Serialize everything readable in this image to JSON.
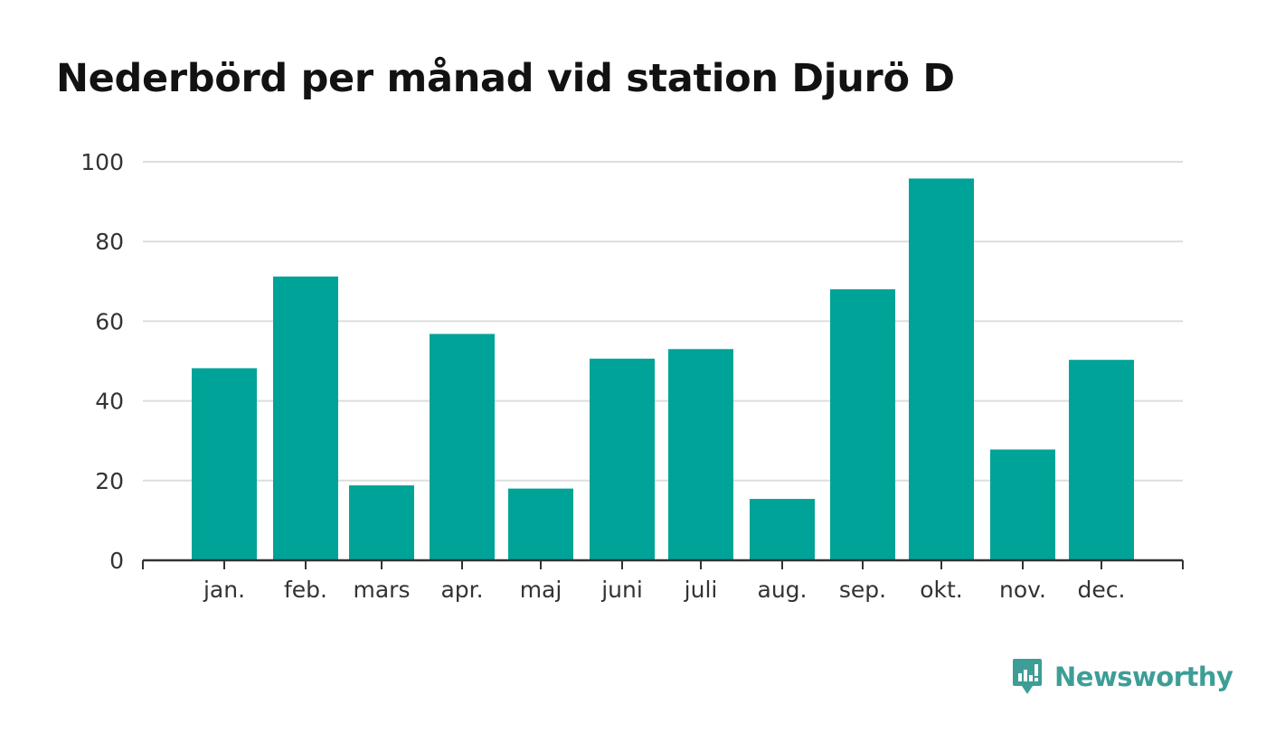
{
  "title": "Nederbörd per månad vid station Djurö D",
  "brand": {
    "name": "Newsworthy",
    "color": "#3d9e97"
  },
  "chart_data": {
    "type": "bar",
    "title": "Nederbörd per månad vid station Djurö D",
    "categories": [
      "jan.",
      "feb.",
      "mars",
      "apr.",
      "maj",
      "juni",
      "juli",
      "aug.",
      "sep.",
      "okt.",
      "nov.",
      "dec."
    ],
    "values": [
      48.2,
      71.2,
      18.8,
      56.8,
      18.0,
      50.6,
      53.0,
      15.4,
      68.0,
      95.8,
      27.8,
      50.3
    ],
    "ylim": [
      0,
      100
    ],
    "yticks": [
      0,
      20,
      40,
      60,
      80,
      100
    ],
    "xlabel": "",
    "ylabel": "",
    "grid": true,
    "bar_color": "#00a398",
    "grid_color": "#dddddd",
    "axis_color": "#333333"
  }
}
